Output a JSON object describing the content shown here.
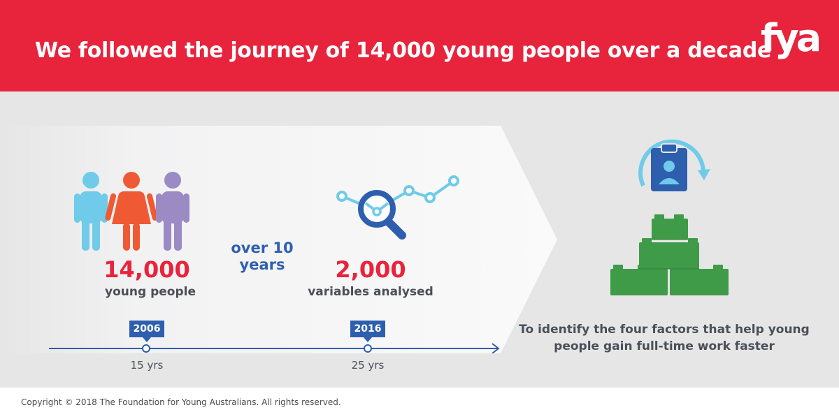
{
  "header": {
    "title": "We followed the journey of 14,000 young people over a decade",
    "logo_text": "fya"
  },
  "stats": {
    "people_number": "14,000",
    "people_label": "young people",
    "duration_text_line1": "over 10",
    "duration_text_line2": "years",
    "variables_number": "2,000",
    "variables_label": "variables analysed"
  },
  "timeline": {
    "start_year": "2006",
    "start_age": "15 yrs",
    "end_year": "2016",
    "end_age": "25 yrs"
  },
  "goal": {
    "text": "To identify the four factors that help young people gain full-time work faster"
  },
  "footer": {
    "copyright": "Copyright © 2018 The Foundation for Young Australians. All rights reserved."
  },
  "colors": {
    "brand_red": "#e8233c",
    "navy_blue": "#2e5fae",
    "light_blue": "#6fcbe9",
    "orange": "#ef5a34",
    "purple": "#9b8ac4",
    "green": "#3f9b47",
    "background_grey": "#e6e6e7"
  },
  "icons": {
    "people": "people-group-icon",
    "analysis": "magnifier-chart-icon",
    "profile": "id-card-cycle-icon",
    "blocks": "building-blocks-icon"
  }
}
